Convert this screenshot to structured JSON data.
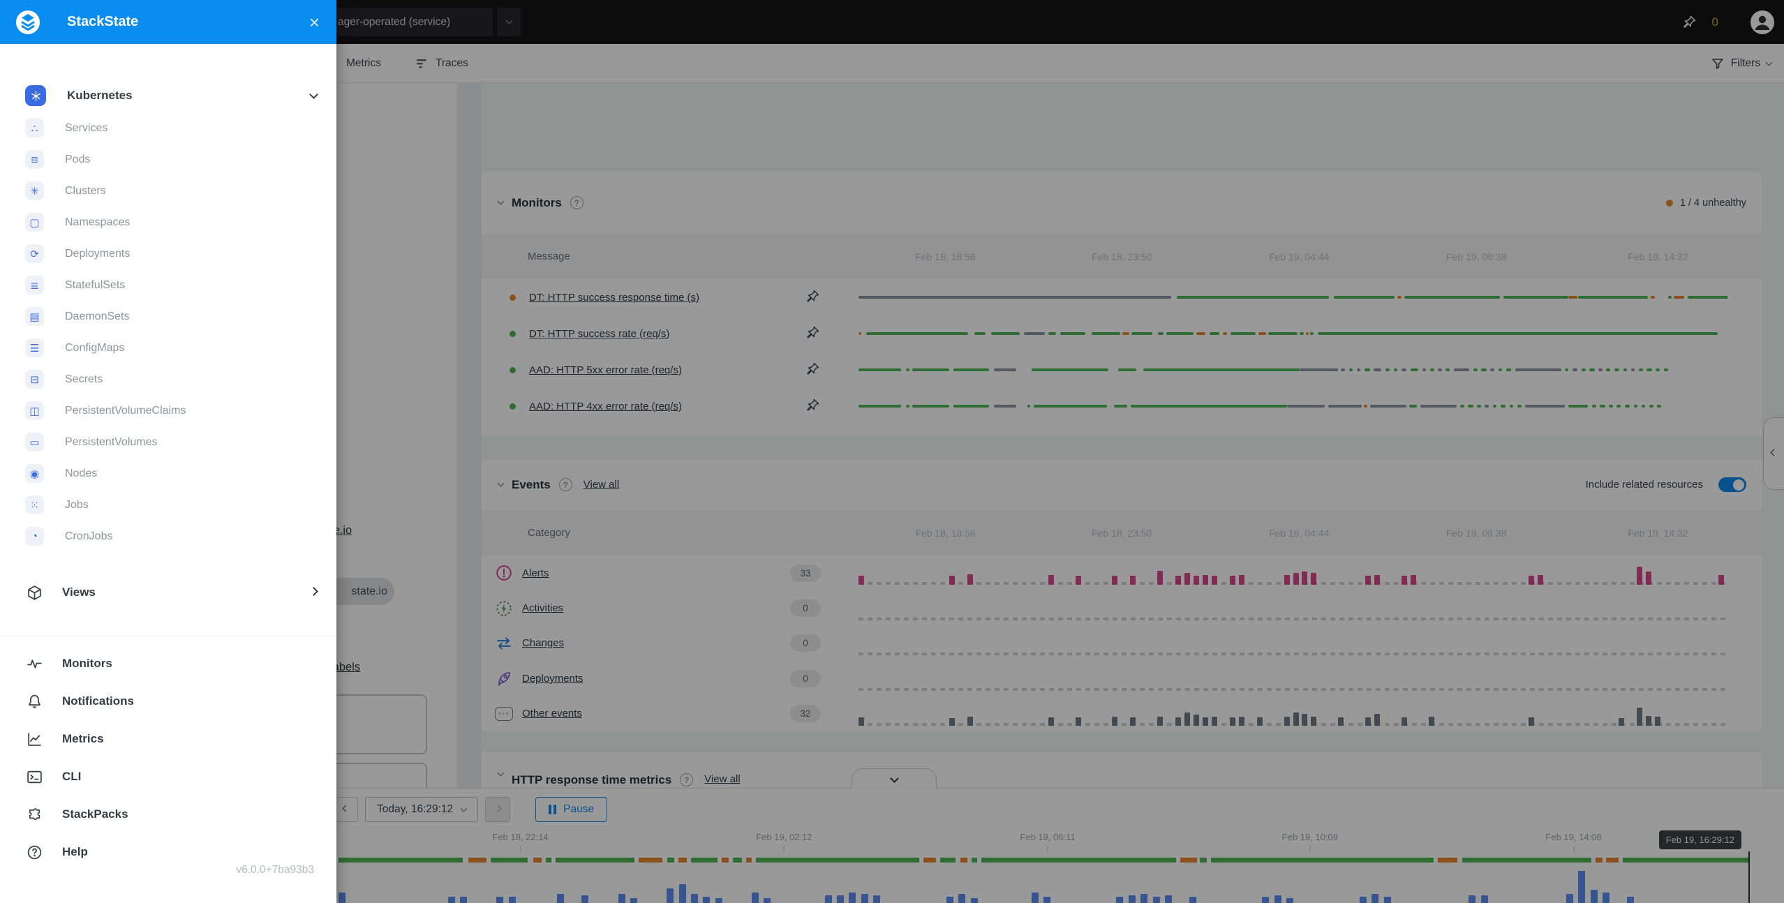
{
  "colors": {
    "healthy": "#4fb456",
    "deviating": "#e8872f",
    "unknown": "#8a93a0",
    "alert": "#d8498d",
    "other": "#6f7a86",
    "timeline_blue": "#5b8def",
    "accent_blue": "#1287f0",
    "brand_blue": "#0a8cf0"
  },
  "sidebar": {
    "brand": "StackState",
    "version": "v6.0.0+7ba93b3",
    "kubernetes": {
      "label": "Kubernetes",
      "icon": "kubernetes-icon"
    },
    "resources": [
      {
        "label": "Services",
        "icon": "services-icon"
      },
      {
        "label": "Pods",
        "icon": "pods-icon"
      },
      {
        "label": "Clusters",
        "icon": "clusters-icon"
      },
      {
        "label": "Namespaces",
        "icon": "namespaces-icon"
      },
      {
        "label": "Deployments",
        "icon": "deployments-icon"
      },
      {
        "label": "StatefulSets",
        "icon": "statefulsets-icon"
      },
      {
        "label": "DaemonSets",
        "icon": "daemonsets-icon"
      },
      {
        "label": "ConfigMaps",
        "icon": "configmaps-icon"
      },
      {
        "label": "Secrets",
        "icon": "secrets-icon"
      },
      {
        "label": "PersistentVolumeClaims",
        "icon": "pvc-icon"
      },
      {
        "label": "PersistentVolumes",
        "icon": "pv-icon"
      },
      {
        "label": "Nodes",
        "icon": "nodes-icon"
      },
      {
        "label": "Jobs",
        "icon": "jobs-icon"
      },
      {
        "label": "CronJobs",
        "icon": "cronjobs-icon"
      }
    ],
    "views": {
      "label": "Views",
      "icon": "views-cube-icon"
    },
    "tools": [
      {
        "label": "Monitors",
        "icon": "monitors-pulse-icon"
      },
      {
        "label": "Notifications",
        "icon": "bell-icon"
      },
      {
        "label": "Metrics",
        "icon": "metrics-chart-icon"
      },
      {
        "label": "CLI",
        "icon": "terminal-icon"
      },
      {
        "label": "StackPacks",
        "icon": "puzzle-icon"
      },
      {
        "label": "Help",
        "icon": "help-circle-icon"
      }
    ]
  },
  "topbar": {
    "selector_value": "ager-operated (service)",
    "pin_count": "0",
    "filters_label": "Filters",
    "tabs": [
      {
        "label": "Metrics",
        "icon": "metrics-tab-icon"
      },
      {
        "label": "Traces",
        "icon": "traces-icon"
      }
    ]
  },
  "left_panel": {
    "link_fragment": "te.io",
    "tag_fragment": "state.io",
    "labels_fragment": "labels"
  },
  "monitors": {
    "title": "Monitors",
    "unhealthy_summary": "1 / 4 unhealthy",
    "columns": {
      "message": "Message",
      "dates": [
        "Feb 18, 18:56",
        "Feb 18, 23:50",
        "Feb 19, 04:44",
        "Feb 19, 09:38",
        "Feb 19, 14:32"
      ],
      "date_positions": [
        10,
        30.3,
        50.7,
        71.1,
        92
      ]
    },
    "rows": [
      {
        "label": "DT: HTTP success response time (s)",
        "status": "deviating",
        "segments": [
          [
            "unknown",
            36,
            0.6
          ],
          [
            "healthy",
            17.5,
            0.6
          ],
          [
            "healthy",
            7,
            0.3
          ],
          [
            "deviating",
            0.5,
            0.3
          ],
          [
            "healthy",
            11,
            0.4
          ],
          [
            "healthy",
            7.5,
            0
          ],
          [
            "deviating",
            1,
            0.15
          ],
          [
            "healthy",
            8,
            0.3
          ],
          [
            "deviating",
            0.5,
            1.5
          ],
          [
            "healthy",
            0.4,
            0.3
          ],
          [
            "deviating",
            1.2,
            0.4
          ],
          [
            "healthy",
            5.5,
            0
          ]
        ]
      },
      {
        "label": "DT: HTTP success rate (req/s)",
        "status": "healthy",
        "segments": [
          [
            "deviating",
            0.35,
            0.5
          ],
          [
            "healthy",
            11.8,
            0.7
          ],
          [
            "healthy",
            1.3,
            0.6
          ],
          [
            "healthy",
            3.3,
            0.5
          ],
          [
            "unknown",
            2.4,
            0.4
          ],
          [
            "healthy",
            0.9,
            0.5
          ],
          [
            "healthy",
            2.9,
            0.7
          ],
          [
            "healthy",
            3.3,
            0.25
          ],
          [
            "deviating",
            0.8,
            0.25
          ],
          [
            "healthy",
            2.4,
            0.6
          ],
          [
            "healthy",
            0.7,
            0.3
          ],
          [
            "healthy",
            3.1,
            0.3
          ],
          [
            "deviating",
            1.1,
            0.5
          ],
          [
            "healthy",
            1.1,
            0.4
          ],
          [
            "deviating",
            0.5,
            0.4
          ],
          [
            "healthy",
            2.9,
            0.3
          ],
          [
            "deviating",
            0.9,
            0.25
          ],
          [
            "healthy",
            3.3,
            0.3
          ],
          [
            "healthy",
            0.5,
            0.2
          ],
          [
            "deviating",
            0.3,
            0.2
          ],
          [
            "healthy",
            0.4,
            0.5
          ],
          [
            "healthy",
            46,
            0
          ]
        ]
      },
      {
        "label": "AAD: HTTP 5xx error rate (req/s)",
        "status": "healthy",
        "segments": [
          [
            "healthy",
            4.9,
            0.6
          ],
          [
            "healthy",
            0.35,
            0.3
          ],
          [
            "healthy",
            4.3,
            0.5
          ],
          [
            "healthy",
            4.1,
            0.5
          ],
          [
            "unknown",
            2.6,
            1.8
          ],
          [
            "healthy",
            8.8,
            1.1
          ],
          [
            "healthy",
            2.1,
            0.8
          ],
          [
            "healthy",
            18,
            0
          ],
          [
            "unknown",
            4.4,
            0.4
          ],
          [
            "unknown",
            0.45,
            0.45
          ],
          [
            "healthy",
            0.45,
            0.45
          ],
          [
            "unknown",
            0.45,
            0.45
          ],
          [
            "healthy",
            0.6,
            0.45
          ],
          [
            "unknown",
            0.9,
            0.45
          ],
          [
            "healthy",
            0.5,
            0.45
          ],
          [
            "healthy",
            0.45,
            0.45
          ],
          [
            "unknown",
            0.6,
            0.45
          ],
          [
            "healthy",
            0.9,
            0.45
          ],
          [
            "unknown",
            0.45,
            0.45
          ],
          [
            "healthy",
            0.45,
            0.45
          ],
          [
            "unknown",
            0.45,
            0.45
          ],
          [
            "healthy",
            0.45,
            0.45
          ],
          [
            "unknown",
            1.8,
            0.5
          ],
          [
            "healthy",
            0.45,
            0.45
          ],
          [
            "healthy",
            0.6,
            0.45
          ],
          [
            "unknown",
            0.45,
            0.45
          ],
          [
            "healthy",
            0.45,
            0.45
          ],
          [
            "healthy",
            0.6,
            0.45
          ],
          [
            "unknown",
            5.3,
            0.4
          ],
          [
            "healthy",
            0.45,
            0.45
          ],
          [
            "unknown",
            0.6,
            0.45
          ],
          [
            "healthy",
            0.45,
            0.45
          ],
          [
            "healthy",
            0.6,
            0.45
          ],
          [
            "unknown",
            0.45,
            0.45
          ],
          [
            "healthy",
            0.45,
            0.45
          ],
          [
            "healthy",
            0.6,
            0.45
          ],
          [
            "healthy",
            0.45,
            0.45
          ],
          [
            "unknown",
            0.45,
            0.45
          ],
          [
            "healthy",
            0.45,
            0.45
          ],
          [
            "healthy",
            0.6,
            0.45
          ],
          [
            "healthy",
            0.45,
            0.45
          ],
          [
            "healthy",
            0.5,
            0
          ]
        ]
      },
      {
        "label": "AAD: HTTP 4xx error rate (req/s)",
        "status": "healthy",
        "segments": [
          [
            "healthy",
            4.9,
            0.6
          ],
          [
            "healthy",
            0.35,
            0.3
          ],
          [
            "healthy",
            4.3,
            0.5
          ],
          [
            "healthy",
            4.1,
            0.5
          ],
          [
            "unknown",
            2.6,
            1.3
          ],
          [
            "healthy",
            0.35,
            0.4
          ],
          [
            "healthy",
            8.4,
            0.8
          ],
          [
            "healthy",
            1.5,
            0.4
          ],
          [
            "healthy",
            18,
            0
          ],
          [
            "unknown",
            4.4,
            0.4
          ],
          [
            "unknown",
            3.8,
            0.3
          ],
          [
            "deviating",
            0.35,
            0.3
          ],
          [
            "unknown",
            4.2,
            0.3
          ],
          [
            "healthy",
            0.9,
            0.4
          ],
          [
            "unknown",
            4.2,
            0.4
          ],
          [
            "healthy",
            0.45,
            0.45
          ],
          [
            "healthy",
            0.6,
            0.45
          ],
          [
            "healthy",
            0.45,
            0.45
          ],
          [
            "unknown",
            0.45,
            0.45
          ],
          [
            "healthy",
            0.45,
            0.45
          ],
          [
            "healthy",
            0.6,
            0.45
          ],
          [
            "healthy",
            0.45,
            0.45
          ],
          [
            "healthy",
            0.45,
            0.45
          ],
          [
            "unknown",
            4.6,
            0.4
          ],
          [
            "healthy",
            2.2,
            0.5
          ],
          [
            "healthy",
            0.45,
            0.45
          ],
          [
            "healthy",
            0.6,
            0.45
          ],
          [
            "healthy",
            0.45,
            0.45
          ],
          [
            "healthy",
            0.45,
            0.45
          ],
          [
            "healthy",
            0.6,
            0.45
          ],
          [
            "healthy",
            0.45,
            0.45
          ],
          [
            "healthy",
            0.45,
            0.45
          ],
          [
            "healthy",
            0.45,
            0.45
          ],
          [
            "healthy",
            0.5,
            0
          ]
        ]
      }
    ]
  },
  "events": {
    "title": "Events",
    "view_all": "View all",
    "include_related": "Include related resources",
    "toggle_on": true,
    "columns": {
      "category": "Category",
      "dates": [
        "Feb 18, 18:56",
        "Feb 18, 23:50",
        "Feb 19, 04:44",
        "Feb 19, 09:38",
        "Feb 19, 14:32"
      ],
      "date_positions": [
        10,
        30.3,
        50.7,
        71.1,
        92
      ]
    },
    "rows": [
      {
        "label": "Alerts",
        "icon": "alert-circle-icon",
        "count": "33",
        "bar_color": "alert",
        "bars": {
          "len": 96,
          "h": {
            "0": 13,
            "10": 13,
            "12": 15,
            "21": 14,
            "24": 13,
            "28": 13,
            "30": 13,
            "33": 20,
            "35": 13,
            "36": 17,
            "37": 13,
            "38": 14,
            "39": 13,
            "41": 13,
            "42": 14,
            "47": 14,
            "48": 17,
            "49": 19,
            "50": 17,
            "56": 13,
            "57": 14,
            "60": 13,
            "61": 14,
            "74": 13,
            "75": 14,
            "86": 26,
            "87": 19,
            "95": 14
          }
        }
      },
      {
        "label": "Activities",
        "icon": "activity-bolt-icon",
        "count": "0",
        "bar_color": "other",
        "bars": {
          "len": 96,
          "h": {}
        }
      },
      {
        "label": "Changes",
        "icon": "changes-arrows-icon",
        "count": "0",
        "bar_color": "other",
        "bars": {
          "len": 96,
          "h": {}
        }
      },
      {
        "label": "Deployments",
        "icon": "deployment-rocket-icon",
        "count": "0",
        "bar_color": "other",
        "bars": {
          "len": 96,
          "h": {}
        }
      },
      {
        "label": "Other events",
        "icon": "other-events-icon",
        "count": "32",
        "bar_color": "other",
        "bars": {
          "len": 96,
          "h": {
            "0": 12,
            "10": 11,
            "12": 13,
            "21": 12,
            "24": 12,
            "28": 13,
            "30": 12,
            "33": 13,
            "35": 12,
            "36": 19,
            "37": 16,
            "38": 12,
            "39": 13,
            "41": 12,
            "42": 13,
            "44": 12,
            "47": 13,
            "48": 19,
            "49": 17,
            "50": 13,
            "53": 12,
            "56": 12,
            "57": 17,
            "60": 12,
            "63": 13,
            "74": 12,
            "84": 11,
            "86": 26,
            "87": 14,
            "88": 13
          }
        }
      }
    ]
  },
  "http_metrics": {
    "title": "HTTP response time metrics",
    "view_all": "View all"
  },
  "timebar": {
    "time_button": "Today, 16:29:12",
    "pause_label": "Pause",
    "tooltip": "Feb 19, 16:29:12",
    "dates": [
      "Feb 18, 22:14",
      "Feb 19, 02:12",
      "Feb 19, 06:11",
      "Feb 19, 10:09",
      "Feb 19, 14:08"
    ],
    "date_positions": [
      12.9,
      31.6,
      50.3,
      68.9,
      87.6
    ],
    "health_segments": [
      [
        "healthy",
        8.8,
        0.4
      ],
      [
        "deviating",
        1.3,
        0.3
      ],
      [
        "healthy",
        2.6,
        0.4
      ],
      [
        "deviating",
        0.6,
        0.3
      ],
      [
        "healthy",
        0.4,
        0.3
      ],
      [
        "healthy",
        5.6,
        0.3
      ],
      [
        "deviating",
        1.7,
        0.3
      ],
      [
        "healthy",
        0.5,
        0.3
      ],
      [
        "deviating",
        0.6,
        0.3
      ],
      [
        "healthy",
        1.9,
        0.3
      ],
      [
        "deviating",
        0.5,
        0.3
      ],
      [
        "healthy",
        0.6,
        0.3
      ],
      [
        "deviating",
        0.4,
        0.3
      ],
      [
        "healthy",
        11.6,
        0.3
      ],
      [
        "deviating",
        0.9,
        0.3
      ],
      [
        "healthy",
        1.1,
        0.3
      ],
      [
        "deviating",
        0.5,
        0.3
      ],
      [
        "healthy",
        0.4,
        0.3
      ],
      [
        "healthy",
        13.8,
        0.3
      ],
      [
        "deviating",
        1.2,
        0.2
      ],
      [
        "healthy",
        0.5,
        0.3
      ],
      [
        "healthy",
        15.8,
        0.3
      ],
      [
        "deviating",
        1.4,
        0.3
      ],
      [
        "healthy",
        9.2,
        0.3
      ],
      [
        "deviating",
        0.5,
        0.2
      ],
      [
        "deviating",
        0.9,
        0.3
      ],
      [
        "healthy",
        9.5,
        0
      ]
    ],
    "histogram": {
      "len": 116,
      "h": {
        "0": 15,
        "9": 9,
        "10": 9,
        "13": 9,
        "14": 9,
        "18": 13,
        "20": 11,
        "23": 13,
        "24": 7,
        "27": 21,
        "28": 27,
        "29": 13,
        "30": 9,
        "31": 7,
        "34": 15,
        "35": 7,
        "40": 11,
        "41": 11,
        "42": 15,
        "43": 13,
        "44": 11,
        "50": 9,
        "51": 13,
        "52": 7,
        "57": 15,
        "58": 9,
        "64": 9,
        "65": 11,
        "66": 13,
        "67": 9,
        "68": 11,
        "70": 9,
        "76": 9,
        "77": 11,
        "78": 7,
        "84": 9,
        "85": 13,
        "86": 9,
        "93": 11,
        "94": 11,
        "101": 13,
        "102": 46,
        "103": 19,
        "104": 15,
        "106": 9
      }
    }
  }
}
